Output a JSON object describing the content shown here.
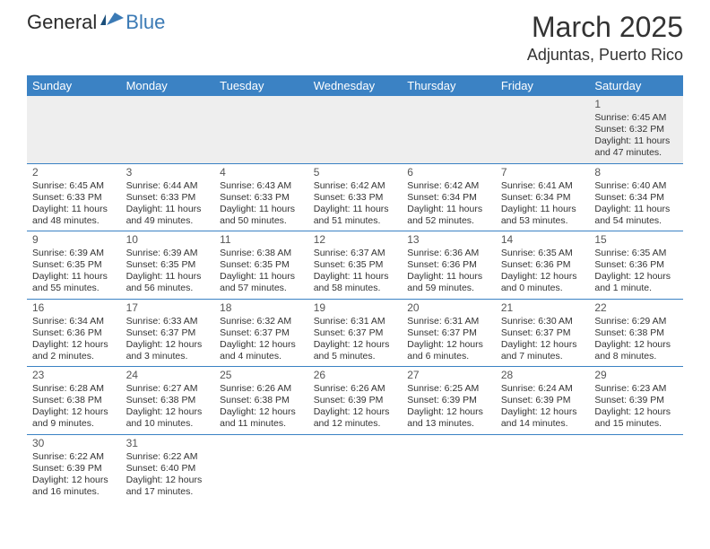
{
  "logo": {
    "text1": "General",
    "text2": "Blue"
  },
  "title": "March 2025",
  "location": "Adjuntas, Puerto Rico",
  "colors": {
    "header_bg": "#3b82c4",
    "header_text": "#ffffff",
    "border": "#3b82c4",
    "logo_blue": "#3b7ab5"
  },
  "day_headers": [
    "Sunday",
    "Monday",
    "Tuesday",
    "Wednesday",
    "Thursday",
    "Friday",
    "Saturday"
  ],
  "weeks": [
    [
      null,
      null,
      null,
      null,
      null,
      null,
      {
        "n": "1",
        "sr": "6:45 AM",
        "ss": "6:32 PM",
        "dl": "11 hours and 47 minutes."
      }
    ],
    [
      {
        "n": "2",
        "sr": "6:45 AM",
        "ss": "6:33 PM",
        "dl": "11 hours and 48 minutes."
      },
      {
        "n": "3",
        "sr": "6:44 AM",
        "ss": "6:33 PM",
        "dl": "11 hours and 49 minutes."
      },
      {
        "n": "4",
        "sr": "6:43 AM",
        "ss": "6:33 PM",
        "dl": "11 hours and 50 minutes."
      },
      {
        "n": "5",
        "sr": "6:42 AM",
        "ss": "6:33 PM",
        "dl": "11 hours and 51 minutes."
      },
      {
        "n": "6",
        "sr": "6:42 AM",
        "ss": "6:34 PM",
        "dl": "11 hours and 52 minutes."
      },
      {
        "n": "7",
        "sr": "6:41 AM",
        "ss": "6:34 PM",
        "dl": "11 hours and 53 minutes."
      },
      {
        "n": "8",
        "sr": "6:40 AM",
        "ss": "6:34 PM",
        "dl": "11 hours and 54 minutes."
      }
    ],
    [
      {
        "n": "9",
        "sr": "6:39 AM",
        "ss": "6:35 PM",
        "dl": "11 hours and 55 minutes."
      },
      {
        "n": "10",
        "sr": "6:39 AM",
        "ss": "6:35 PM",
        "dl": "11 hours and 56 minutes."
      },
      {
        "n": "11",
        "sr": "6:38 AM",
        "ss": "6:35 PM",
        "dl": "11 hours and 57 minutes."
      },
      {
        "n": "12",
        "sr": "6:37 AM",
        "ss": "6:35 PM",
        "dl": "11 hours and 58 minutes."
      },
      {
        "n": "13",
        "sr": "6:36 AM",
        "ss": "6:36 PM",
        "dl": "11 hours and 59 minutes."
      },
      {
        "n": "14",
        "sr": "6:35 AM",
        "ss": "6:36 PM",
        "dl": "12 hours and 0 minutes."
      },
      {
        "n": "15",
        "sr": "6:35 AM",
        "ss": "6:36 PM",
        "dl": "12 hours and 1 minute."
      }
    ],
    [
      {
        "n": "16",
        "sr": "6:34 AM",
        "ss": "6:36 PM",
        "dl": "12 hours and 2 minutes."
      },
      {
        "n": "17",
        "sr": "6:33 AM",
        "ss": "6:37 PM",
        "dl": "12 hours and 3 minutes."
      },
      {
        "n": "18",
        "sr": "6:32 AM",
        "ss": "6:37 PM",
        "dl": "12 hours and 4 minutes."
      },
      {
        "n": "19",
        "sr": "6:31 AM",
        "ss": "6:37 PM",
        "dl": "12 hours and 5 minutes."
      },
      {
        "n": "20",
        "sr": "6:31 AM",
        "ss": "6:37 PM",
        "dl": "12 hours and 6 minutes."
      },
      {
        "n": "21",
        "sr": "6:30 AM",
        "ss": "6:37 PM",
        "dl": "12 hours and 7 minutes."
      },
      {
        "n": "22",
        "sr": "6:29 AM",
        "ss": "6:38 PM",
        "dl": "12 hours and 8 minutes."
      }
    ],
    [
      {
        "n": "23",
        "sr": "6:28 AM",
        "ss": "6:38 PM",
        "dl": "12 hours and 9 minutes."
      },
      {
        "n": "24",
        "sr": "6:27 AM",
        "ss": "6:38 PM",
        "dl": "12 hours and 10 minutes."
      },
      {
        "n": "25",
        "sr": "6:26 AM",
        "ss": "6:38 PM",
        "dl": "12 hours and 11 minutes."
      },
      {
        "n": "26",
        "sr": "6:26 AM",
        "ss": "6:39 PM",
        "dl": "12 hours and 12 minutes."
      },
      {
        "n": "27",
        "sr": "6:25 AM",
        "ss": "6:39 PM",
        "dl": "12 hours and 13 minutes."
      },
      {
        "n": "28",
        "sr": "6:24 AM",
        "ss": "6:39 PM",
        "dl": "12 hours and 14 minutes."
      },
      {
        "n": "29",
        "sr": "6:23 AM",
        "ss": "6:39 PM",
        "dl": "12 hours and 15 minutes."
      }
    ],
    [
      {
        "n": "30",
        "sr": "6:22 AM",
        "ss": "6:39 PM",
        "dl": "12 hours and 16 minutes."
      },
      {
        "n": "31",
        "sr": "6:22 AM",
        "ss": "6:40 PM",
        "dl": "12 hours and 17 minutes."
      },
      null,
      null,
      null,
      null,
      null
    ]
  ],
  "labels": {
    "sunrise": "Sunrise:",
    "sunset": "Sunset:",
    "daylight": "Daylight:"
  }
}
